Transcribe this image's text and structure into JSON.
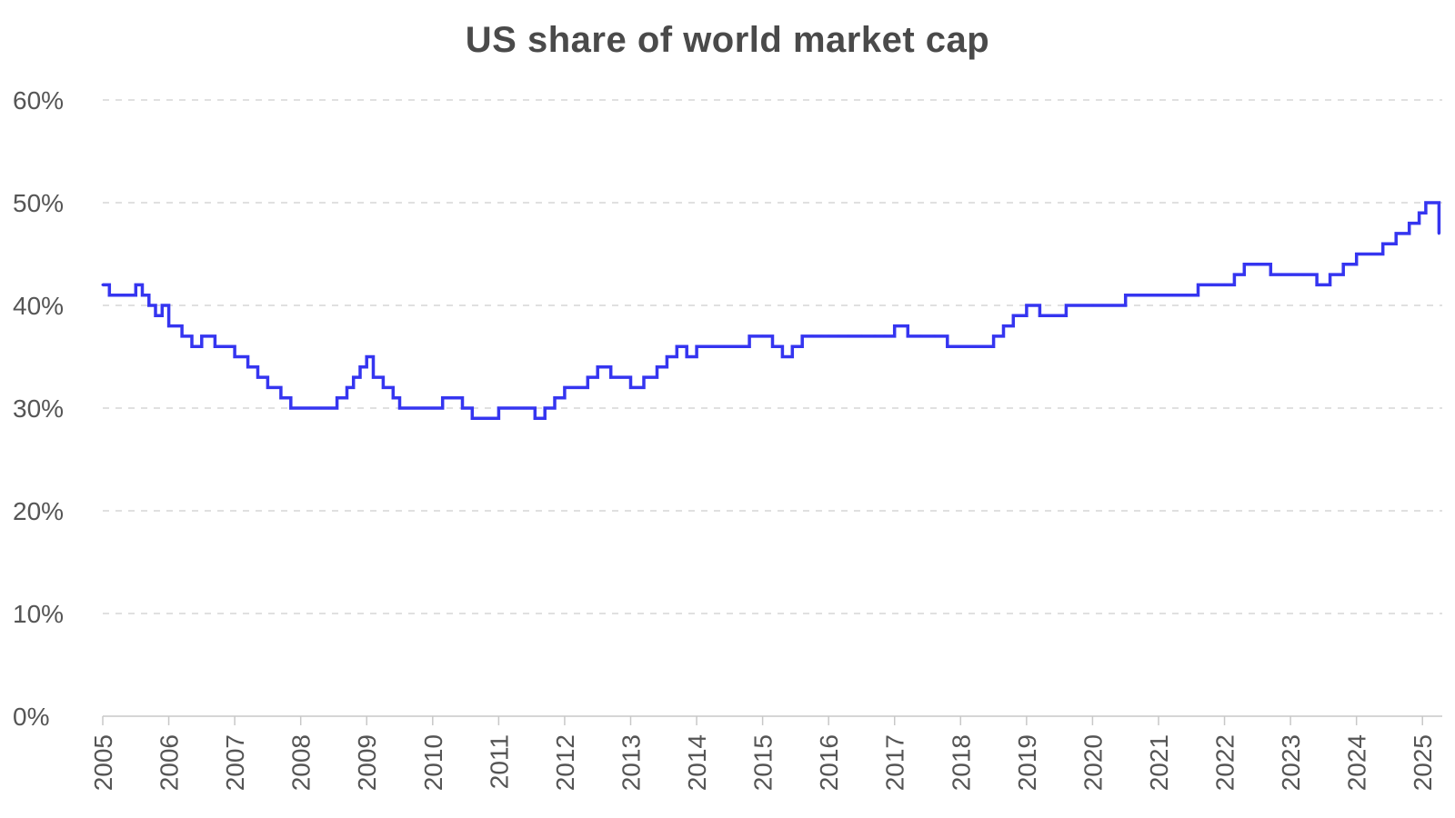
{
  "chart_data": {
    "type": "line",
    "title": "US share of world market cap",
    "xlabel": "",
    "ylabel": "",
    "xlim": [
      2005,
      2025.3
    ],
    "ylim": [
      0,
      0.6
    ],
    "y_ticks": [
      {
        "value": 0,
        "label": "0%"
      },
      {
        "value": 0.1,
        "label": "10%"
      },
      {
        "value": 0.2,
        "label": "20%"
      },
      {
        "value": 0.3,
        "label": "30%"
      },
      {
        "value": 0.4,
        "label": "40%"
      },
      {
        "value": 0.5,
        "label": "50%"
      },
      {
        "value": 0.6,
        "label": "60%"
      }
    ],
    "x_ticks": [
      {
        "value": 2005,
        "label": "2005"
      },
      {
        "value": 2006,
        "label": "2006"
      },
      {
        "value": 2007,
        "label": "2007"
      },
      {
        "value": 2008,
        "label": "2008"
      },
      {
        "value": 2009,
        "label": "2009"
      },
      {
        "value": 2010,
        "label": "2010"
      },
      {
        "value": 2011,
        "label": "2011"
      },
      {
        "value": 2012,
        "label": "2012"
      },
      {
        "value": 2013,
        "label": "2013"
      },
      {
        "value": 2014,
        "label": "2014"
      },
      {
        "value": 2015,
        "label": "2015"
      },
      {
        "value": 2016,
        "label": "2016"
      },
      {
        "value": 2017,
        "label": "2017"
      },
      {
        "value": 2018,
        "label": "2018"
      },
      {
        "value": 2019,
        "label": "2019"
      },
      {
        "value": 2020,
        "label": "2020"
      },
      {
        "value": 2021,
        "label": "2021"
      },
      {
        "value": 2022,
        "label": "2022"
      },
      {
        "value": 2023,
        "label": "2023"
      },
      {
        "value": 2024,
        "label": "2024"
      },
      {
        "value": 2025,
        "label": "2025"
      }
    ],
    "grid": true,
    "line_color": "#3535f0",
    "series": [
      {
        "x": [
          2005.0,
          2005.1,
          2005.3,
          2005.5,
          2005.6,
          2005.7,
          2005.8,
          2005.9,
          2006.0,
          2006.2,
          2006.35,
          2006.5,
          2006.7,
          2006.85,
          2007.0,
          2007.2,
          2007.35,
          2007.5,
          2007.7,
          2007.85,
          2008.0,
          2008.15,
          2008.3,
          2008.45,
          2008.55,
          2008.7,
          2008.8,
          2008.9,
          2009.0,
          2009.1,
          2009.25,
          2009.4,
          2009.5,
          2009.7,
          2009.85,
          2010.0,
          2010.15,
          2010.3,
          2010.45,
          2010.6,
          2010.8,
          2011.0,
          2011.2,
          2011.4,
          2011.55,
          2011.7,
          2011.85,
          2012.0,
          2012.2,
          2012.35,
          2012.5,
          2012.7,
          2012.85,
          2013.0,
          2013.2,
          2013.4,
          2013.55,
          2013.7,
          2013.85,
          2014.0,
          2014.2,
          2014.4,
          2014.6,
          2014.8,
          2015.0,
          2015.15,
          2015.3,
          2015.45,
          2015.6,
          2015.75,
          2015.9,
          2016.0,
          2016.15,
          2016.3,
          2016.5,
          2016.7,
          2016.85,
          2017.0,
          2017.2,
          2017.4,
          2017.6,
          2017.8,
          2018.0,
          2018.2,
          2018.35,
          2018.5,
          2018.65,
          2018.8,
          2019.0,
          2019.2,
          2019.4,
          2019.6,
          2019.8,
          2020.0,
          2020.15,
          2020.3,
          2020.5,
          2020.7,
          2020.9,
          2021.0,
          2021.2,
          2021.4,
          2021.6,
          2021.8,
          2022.0,
          2022.15,
          2022.3,
          2022.5,
          2022.7,
          2022.85,
          2023.0,
          2023.2,
          2023.4,
          2023.6,
          2023.8,
          2024.0,
          2024.2,
          2024.4,
          2024.6,
          2024.8,
          2024.95,
          2025.05,
          2025.15,
          2025.25
        ],
        "values": [
          0.42,
          0.41,
          0.41,
          0.42,
          0.41,
          0.4,
          0.39,
          0.4,
          0.38,
          0.37,
          0.36,
          0.37,
          0.36,
          0.36,
          0.35,
          0.34,
          0.33,
          0.32,
          0.31,
          0.3,
          0.3,
          0.3,
          0.3,
          0.3,
          0.31,
          0.32,
          0.33,
          0.34,
          0.35,
          0.33,
          0.32,
          0.31,
          0.3,
          0.3,
          0.3,
          0.3,
          0.31,
          0.31,
          0.3,
          0.29,
          0.29,
          0.3,
          0.3,
          0.3,
          0.29,
          0.3,
          0.31,
          0.32,
          0.32,
          0.33,
          0.34,
          0.33,
          0.33,
          0.32,
          0.33,
          0.34,
          0.35,
          0.36,
          0.35,
          0.36,
          0.36,
          0.36,
          0.36,
          0.37,
          0.37,
          0.36,
          0.35,
          0.36,
          0.37,
          0.37,
          0.37,
          0.37,
          0.37,
          0.37,
          0.37,
          0.37,
          0.37,
          0.38,
          0.37,
          0.37,
          0.37,
          0.36,
          0.36,
          0.36,
          0.36,
          0.37,
          0.38,
          0.39,
          0.4,
          0.39,
          0.39,
          0.4,
          0.4,
          0.4,
          0.4,
          0.4,
          0.41,
          0.41,
          0.41,
          0.41,
          0.41,
          0.41,
          0.42,
          0.42,
          0.42,
          0.43,
          0.44,
          0.44,
          0.43,
          0.43,
          0.43,
          0.43,
          0.42,
          0.43,
          0.44,
          0.45,
          0.45,
          0.46,
          0.47,
          0.48,
          0.49,
          0.5,
          0.5,
          0.47
        ]
      }
    ]
  }
}
